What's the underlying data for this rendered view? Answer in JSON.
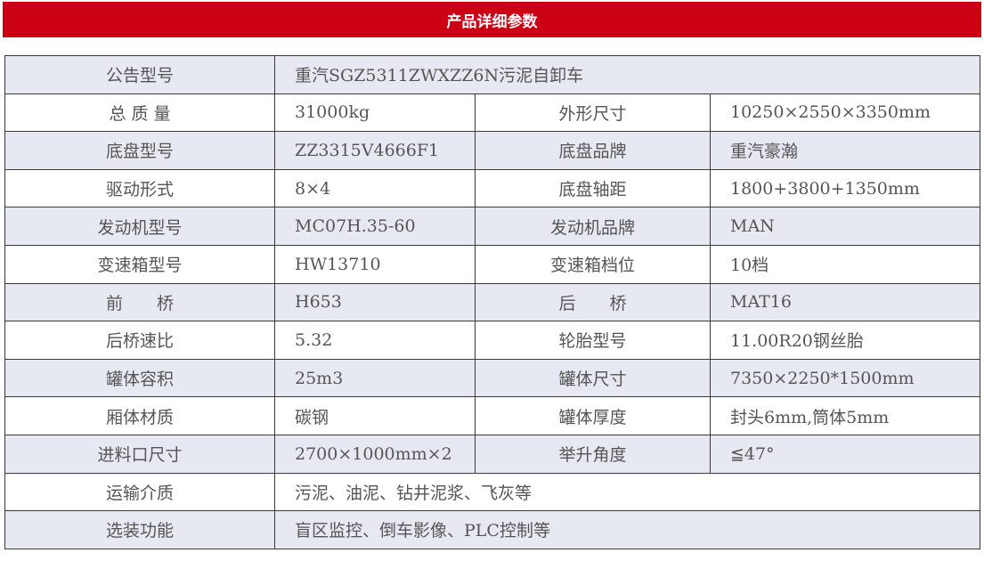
{
  "title": "产品详细参数",
  "colors": {
    "banner": "#cc0014",
    "row_alt": "#e6e9f1",
    "text": "#555555"
  },
  "rows": [
    {
      "label": "公告型号",
      "value": "重汽SGZ5311ZWXZZ6N污泥自卸车"
    },
    {
      "label": "总 质 量",
      "value": "31000kg",
      "label2": "外形尺寸",
      "value2": "10250×2550×3350mm"
    },
    {
      "label": "底盘型号",
      "value": "ZZ3315V4666F1",
      "label2": "底盘品牌",
      "value2": "重汽豪瀚"
    },
    {
      "label": "驱动形式",
      "value": "8×4",
      "label2": "底盘轴距",
      "value2": "1800+3800+1350mm"
    },
    {
      "label": "发动机型号",
      "value": "MC07H.35-60",
      "label2": "发动机品牌",
      "value2": "MAN"
    },
    {
      "label": "变速箱型号",
      "value": "HW13710",
      "label2": "变速箱档位",
      "value2": "10档"
    },
    {
      "label": "前　　桥",
      "value": "H653",
      "label2": "后　　桥",
      "value2": "MAT16"
    },
    {
      "label": "后桥速比",
      "value": "5.32",
      "label2": "轮胎型号",
      "value2": "11.00R20钢丝胎"
    },
    {
      "label": "罐体容积",
      "value": "25m3",
      "label2": "罐体尺寸",
      "value2": "7350×2250*1500mm"
    },
    {
      "label": "厢体材质",
      "value": "碳钢",
      "label2": "罐体厚度",
      "value2": "封头6mm,筒体5mm"
    },
    {
      "label": "进料口尺寸",
      "value": "2700×1000mm×2",
      "label2": "举升角度",
      "value2": "≦47°"
    },
    {
      "label": "运输介质",
      "value": "污泥、油泥、钻井泥浆、飞灰等"
    },
    {
      "label": "选装功能",
      "value": "盲区监控、倒车影像、PLC控制等"
    }
  ]
}
